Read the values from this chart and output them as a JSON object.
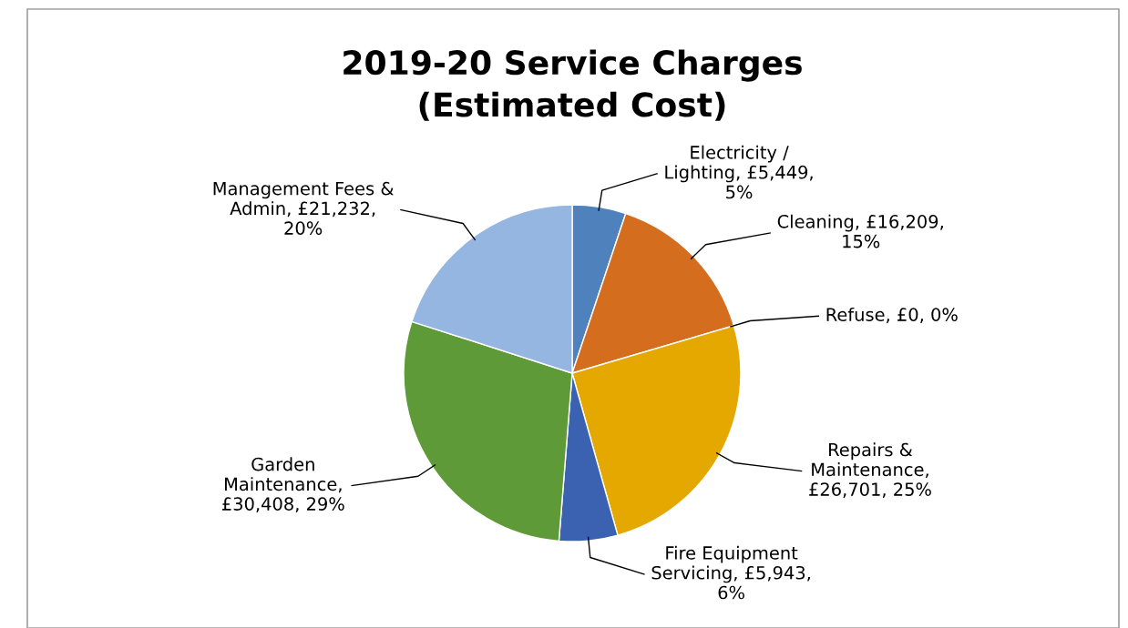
{
  "chart_data": {
    "type": "pie",
    "title": "2019-20 Service Charges\n(Estimated Cost)",
    "categories": [
      "Electricity / Lighting",
      "Cleaning",
      "Refuse",
      "Repairs & Maintenance",
      "Fire Equipment Servicing",
      "Garden Maintenance",
      "Management Fees & Admin"
    ],
    "values": [
      5449,
      16209,
      0,
      26701,
      5943,
      30408,
      21232
    ],
    "value_labels": [
      ", £5,449, 5%",
      ", £16,209, 15%",
      ", £0, 0%",
      ", £26,701, 25%",
      ", £5,943, 6%",
      ", £30,408, 29%",
      ", £21,232, 20%"
    ],
    "colors": [
      "#4f81bd",
      "#d56d1e",
      "#a5a5a5",
      "#e5a800",
      "#3a62b0",
      "#5f9a38",
      "#95b6e0"
    ]
  }
}
